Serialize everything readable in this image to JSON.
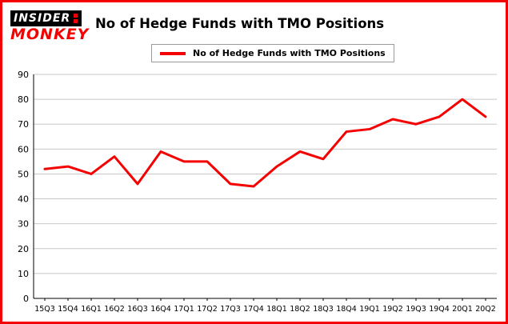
{
  "brand": {
    "line1": "INSIDER",
    "line2": "MONKEY"
  },
  "header": {
    "title": "No of Hedge Funds with TMO Positions"
  },
  "legend": {
    "label": "No of Hedge Funds with TMO Positions"
  },
  "colors": {
    "accent_red": "#f40000",
    "grid": "#c8c8c8",
    "axis": "#000000",
    "background": "#ffffff"
  },
  "chart_data": {
    "type": "line",
    "title": "No of Hedge Funds with TMO Positions",
    "categories": [
      "15Q3",
      "15Q4",
      "16Q1",
      "16Q2",
      "16Q3",
      "16Q4",
      "17Q1",
      "17Q2",
      "17Q3",
      "17Q4",
      "18Q1",
      "18Q2",
      "18Q3",
      "18Q4",
      "19Q1",
      "19Q2",
      "19Q3",
      "19Q4",
      "20Q1",
      "20Q2"
    ],
    "series": [
      {
        "name": "No of Hedge Funds with TMO Positions",
        "values": [
          52,
          53,
          50,
          57,
          46,
          59,
          55,
          55,
          46,
          45,
          53,
          59,
          56,
          67,
          68,
          72,
          70,
          73,
          80,
          73
        ]
      }
    ],
    "xlabel": "",
    "ylabel": "",
    "ylim": [
      0,
      90
    ],
    "ytick_step": 10,
    "grid": true,
    "legend_position": "top"
  }
}
